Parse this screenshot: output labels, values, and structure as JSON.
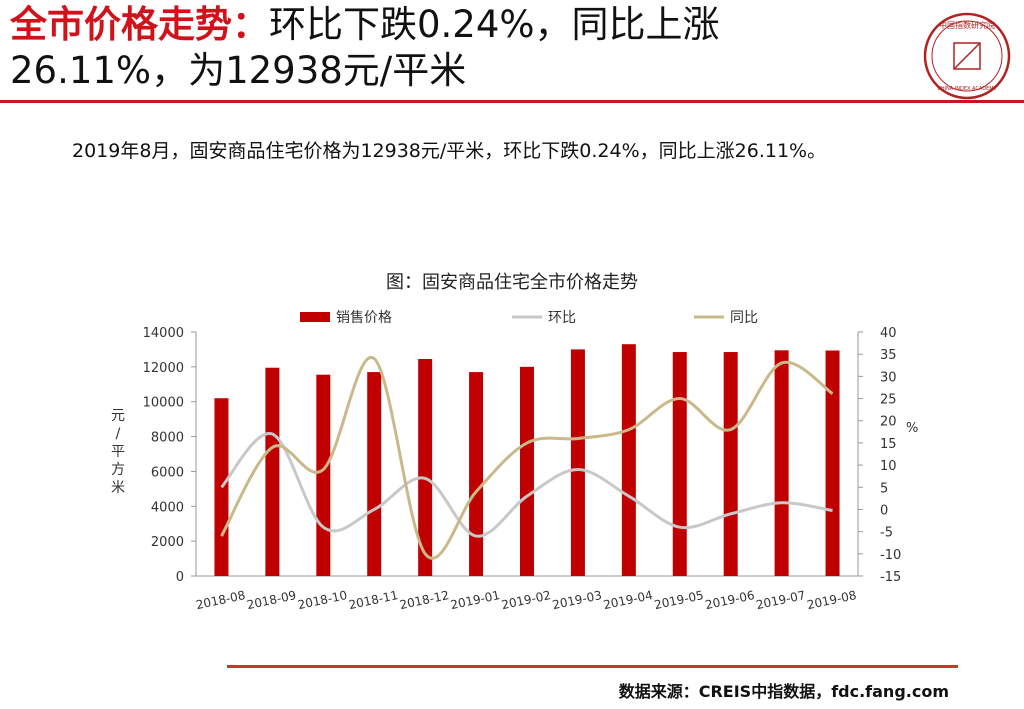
{
  "header": {
    "title_highlight": "全市价格走势：",
    "title_line1_rest": "环比下跌0.24%，同比上涨",
    "title_line2": "26.11%，为12938元/平米"
  },
  "logo": {
    "text": "中国指数研究院",
    "english": "CHINA INDEX ACADEMY",
    "center": "中 指"
  },
  "summary": "2019年8月，固安商品住宅价格为12938元/平米，环比下跌0.24%，同比上涨26.11%。",
  "chart_data": {
    "type": "bar",
    "title": "图：固安商品住宅全市价格走势",
    "categories": [
      "2018-08",
      "2018-09",
      "2018-10",
      "2018-11",
      "2018-12",
      "2019-01",
      "2019-02",
      "2019-03",
      "2019-04",
      "2019-05",
      "2019-06",
      "2019-07",
      "2019-08"
    ],
    "series": [
      {
        "name": "销售价格",
        "type": "bar",
        "axis": "left",
        "color": "#c00000",
        "values": [
          10200,
          11950,
          11550,
          11700,
          12450,
          11700,
          12000,
          13000,
          13300,
          12850,
          12850,
          12950,
          12938
        ]
      },
      {
        "name": "环比",
        "type": "line",
        "axis": "right",
        "color": "#c8c8c8",
        "values": [
          5,
          17,
          -4,
          0,
          7,
          -6,
          3,
          9,
          3,
          -4,
          -1,
          1.5,
          -0.24
        ]
      },
      {
        "name": "同比",
        "type": "line",
        "axis": "right",
        "color": "#c9b98a",
        "values": [
          -6,
          14,
          9,
          34,
          -10,
          4,
          15,
          16,
          18,
          25,
          18,
          33,
          26.11
        ]
      }
    ],
    "y_left": {
      "label": "元/平方米",
      "min": 0,
      "max": 14000,
      "ticks": [
        0,
        2000,
        4000,
        6000,
        8000,
        10000,
        12000,
        14000
      ]
    },
    "y_right": {
      "label": "%",
      "min": -15,
      "max": 40,
      "ticks": [
        -15,
        -10,
        -5,
        0,
        5,
        10,
        15,
        20,
        25,
        30,
        35,
        40
      ]
    },
    "legend_position": "top",
    "grid": false
  },
  "footer": {
    "source": "数据来源：CREIS中指数据，fdc.fang.com"
  }
}
